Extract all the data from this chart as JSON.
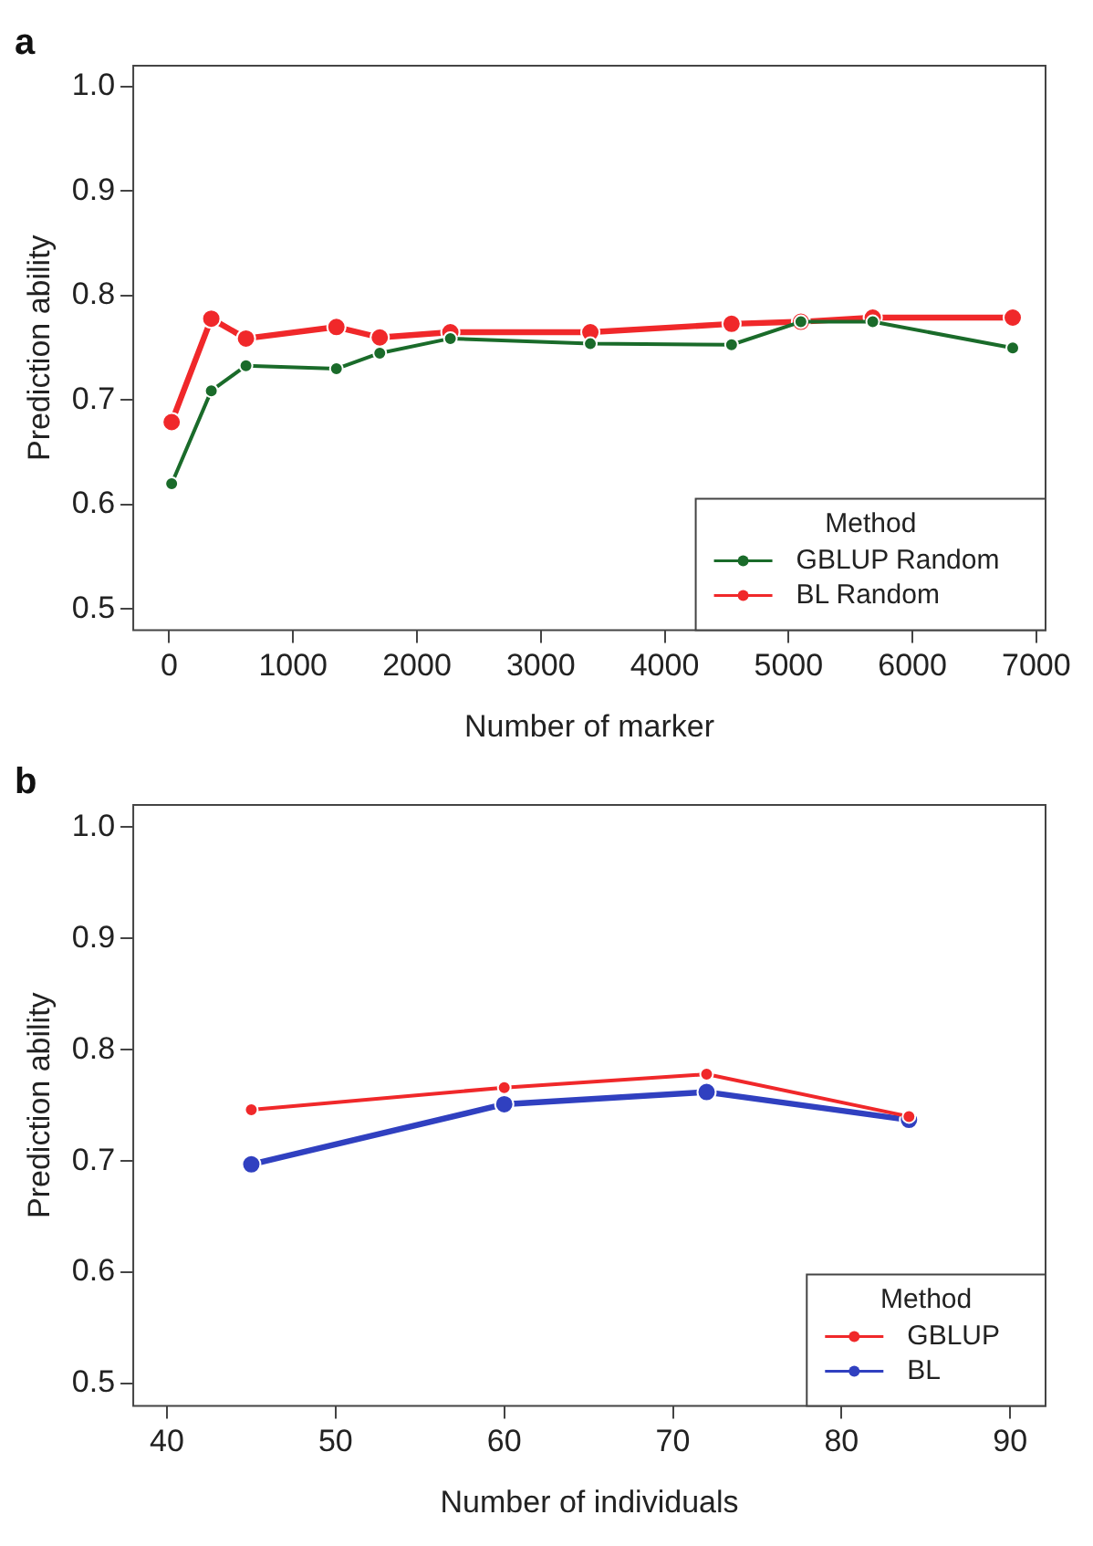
{
  "chart_data": [
    {
      "type": "line",
      "title": "a",
      "xlabel": "Number of marker",
      "ylabel": "Prediction ability",
      "legend_title": "Method",
      "legend": "bottom right",
      "grid": false,
      "marker": "circle",
      "line_style": "solid",
      "xlim": [
        -290,
        7075
      ],
      "xticks": [
        0,
        1000,
        2000,
        3000,
        4000,
        5000,
        6000,
        7000
      ],
      "ylim": [
        0.48,
        1.02
      ],
      "yticks": [
        0.5,
        0.6,
        0.7,
        0.8,
        0.9,
        {
          "value": 1,
          "label": "1.0"
        }
      ],
      "x": [
        20,
        340,
        620,
        1350,
        1700,
        2270,
        3400,
        4540,
        5100,
        5680,
        6810
      ],
      "series": [
        {
          "name": "GBLUP Random",
          "color": "#1a6b2a",
          "values": [
            0.62,
            0.709,
            0.733,
            0.73,
            0.745,
            0.759,
            0.754,
            0.753,
            0.775,
            0.775,
            0.75
          ]
        },
        {
          "name": "BL Random",
          "color": "#f0282a",
          "values": [
            0.679,
            0.778,
            0.759,
            0.77,
            0.76,
            0.765,
            0.765,
            0.773,
            0.775,
            0.779,
            0.779
          ]
        }
      ]
    },
    {
      "type": "line",
      "title": "b",
      "xlabel": "Number of individuals",
      "ylabel": "Prediction ability",
      "legend_title": "Method",
      "legend": "bottom right",
      "grid": false,
      "marker": "circle",
      "line_style": "solid",
      "xlim": [
        38,
        92.1
      ],
      "xticks": [
        40,
        50,
        60,
        70,
        80,
        90
      ],
      "ylim": [
        0.48,
        1.02
      ],
      "yticks": [
        0.5,
        0.6,
        0.7,
        0.8,
        0.9,
        {
          "value": 1,
          "label": "1.0"
        }
      ],
      "x": [
        45,
        60,
        72,
        84
      ],
      "series": [
        {
          "name": "GBLUP",
          "color": "#f0282a",
          "values": [
            0.746,
            0.766,
            0.778,
            0.74
          ]
        },
        {
          "name": "BL",
          "color": "#3040c0",
          "values": [
            0.697,
            0.751,
            0.762,
            0.737
          ]
        }
      ]
    }
  ]
}
